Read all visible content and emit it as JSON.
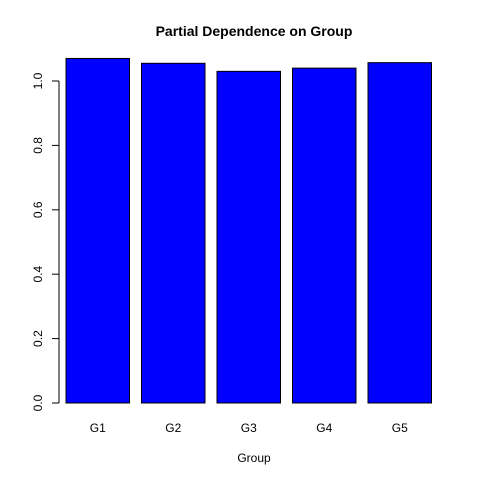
{
  "chart_data": {
    "type": "bar",
    "title": "Partial Dependence on Group",
    "xlabel": "Group",
    "ylabel": "",
    "categories": [
      "G1",
      "G2",
      "G3",
      "G4",
      "G5"
    ],
    "values": [
      1.07,
      1.055,
      1.03,
      1.04,
      1.057
    ],
    "ylim": [
      0,
      1.07
    ],
    "yticks": [
      "0.0",
      "0.2",
      "0.4",
      "0.6",
      "0.8",
      "1.0"
    ],
    "bar_color": "#0000FF",
    "bar_border_color": "#000000",
    "grid": false,
    "legend": "none"
  }
}
